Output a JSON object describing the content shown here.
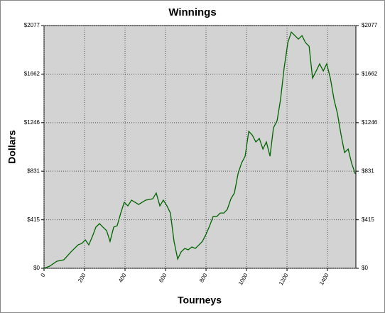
{
  "chart_data": {
    "type": "line",
    "title": "Winnings",
    "x_label": "Tourneys",
    "y_label": "Dollars",
    "x": [
      0,
      28,
      63,
      98,
      133,
      168,
      186,
      204,
      221,
      239,
      256,
      274,
      291,
      309,
      326,
      344,
      361,
      379,
      396,
      414,
      432,
      467,
      502,
      537,
      554,
      572,
      589,
      607,
      624,
      642,
      660,
      677,
      695,
      712,
      730,
      747,
      765,
      782,
      800,
      818,
      835,
      853,
      870,
      888,
      905,
      923,
      940,
      958,
      975,
      993,
      1011,
      1028,
      1046,
      1063,
      1081,
      1098,
      1116,
      1133,
      1151,
      1168,
      1186,
      1204,
      1221,
      1239,
      1256,
      1274,
      1291,
      1309,
      1326,
      1344,
      1361,
      1379,
      1396,
      1414,
      1432,
      1449,
      1467,
      1484,
      1502,
      1519,
      1537
    ],
    "series": [
      {
        "name": "Winnings",
        "color": "#006400",
        "values": [
          0,
          18,
          60,
          73,
          140,
          200,
          212,
          243,
          200,
          273,
          352,
          382,
          352,
          322,
          230,
          352,
          364,
          473,
          565,
          534,
          583,
          546,
          583,
          595,
          644,
          534,
          583,
          534,
          473,
          230,
          79,
          140,
          170,
          158,
          182,
          170,
          200,
          230,
          291,
          364,
          443,
          443,
          473,
          473,
          504,
          595,
          644,
          808,
          899,
          959,
          1172,
          1141,
          1081,
          1111,
          1020,
          1081,
          959,
          1202,
          1263,
          1445,
          1718,
          1931,
          2021,
          1991,
          1961,
          1991,
          1931,
          1900,
          1627,
          1688,
          1749,
          1688,
          1749,
          1627,
          1445,
          1324,
          1141,
          990,
          1020,
          899,
          808
        ]
      }
    ],
    "xlim": [
      0,
      1540
    ],
    "xticks": [
      0,
      200,
      400,
      600,
      800,
      1000,
      1200,
      1400
    ],
    "ylim": [
      0,
      2077
    ],
    "yticks": [
      {
        "value": 0,
        "label": "$0"
      },
      {
        "value": 415,
        "label": "$415"
      },
      {
        "value": 831,
        "label": "$831"
      },
      {
        "value": 1246,
        "label": "$1246"
      },
      {
        "value": 1662,
        "label": "$1662"
      },
      {
        "value": 2077,
        "label": "$2077"
      }
    ],
    "grid": true
  }
}
